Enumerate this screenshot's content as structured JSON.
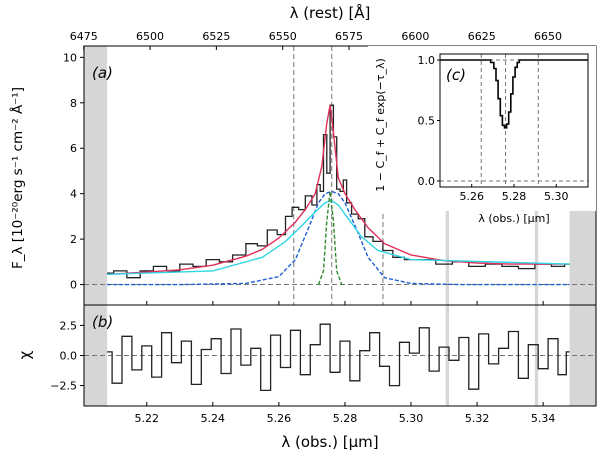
{
  "figure": {
    "top_axis_label": "λ (rest) [Å]",
    "bottom_axis_label": "λ (obs.) [μm]",
    "panel_a_ylabel": "F_λ [10⁻²⁰erg s⁻¹ cm⁻² Å⁻¹]",
    "panel_b_ylabel": "χ",
    "inset_ylabel": "1 − C_f + C_f exp(−τ_λ)",
    "inset_xlabel": "λ (obs.) [μm]",
    "panel_a_tag": "(a)",
    "panel_b_tag": "(b)",
    "panel_c_tag": "(c)"
  },
  "chart_data": [
    {
      "panel": "(a)",
      "type": "line",
      "title": "",
      "xlabel": "λ (obs.) [μm]",
      "ylabel": "F_λ [10⁻²⁰erg s⁻¹ cm⁻² Å⁻¹]",
      "xlim": [
        5.201,
        5.356
      ],
      "ylim": [
        -0.9,
        10.5
      ],
      "x_ticks": [
        5.22,
        5.24,
        5.26,
        5.28,
        5.3,
        5.32,
        5.34
      ],
      "x_tick_labels": [
        "5.22",
        "5.24",
        "5.26",
        "5.28",
        "5.30",
        "5.32",
        "5.34"
      ],
      "y_ticks": [
        0,
        2,
        4,
        6,
        8,
        10
      ],
      "top_axis": {
        "label": "λ (rest) [Å]",
        "ticks": [
          6475,
          6500,
          6525,
          6550,
          6575,
          6600,
          6625,
          6650
        ],
        "tick_labels": [
          "6475",
          "6500",
          "6525",
          "6550",
          "6575",
          "6600",
          "6625",
          "6650"
        ],
        "obs_per_rest": 0.00080323
      },
      "masked_regions": [
        [
          5.201,
          5.208
        ],
        [
          5.3105,
          5.3115
        ],
        [
          5.3375,
          5.3385
        ],
        [
          5.348,
          5.356
        ]
      ],
      "vertical_dashed_lines": [
        5.2645,
        5.276,
        5.2915
      ],
      "horizontal_dashed_line": 0,
      "series": [
        {
          "name": "data",
          "style": "steps",
          "color": "#222222",
          "x": [
            5.208,
            5.212,
            5.216,
            5.22,
            5.224,
            5.228,
            5.232,
            5.236,
            5.24,
            5.244,
            5.248,
            5.252,
            5.255,
            5.258,
            5.261,
            5.263,
            5.265,
            5.267,
            5.269,
            5.271,
            5.272,
            5.273,
            5.274,
            5.275,
            5.276,
            5.277,
            5.278,
            5.279,
            5.28,
            5.281,
            5.283,
            5.285,
            5.287,
            5.29,
            5.293,
            5.296,
            5.3,
            5.305,
            5.31,
            5.315,
            5.32,
            5.325,
            5.33,
            5.335,
            5.34,
            5.345,
            5.348
          ],
          "y": [
            0.5,
            0.6,
            0.3,
            0.6,
            0.8,
            0.6,
            0.9,
            0.8,
            1.1,
            1.0,
            1.3,
            1.8,
            1.7,
            2.4,
            2.2,
            3.0,
            3.4,
            3.3,
            3.9,
            3.5,
            4.4,
            4.1,
            6.6,
            4.9,
            7.9,
            6.5,
            4.2,
            4.1,
            4.6,
            3.6,
            3.1,
            2.9,
            2.1,
            1.9,
            1.5,
            1.2,
            1.1,
            1.1,
            0.9,
            1.0,
            0.8,
            0.9,
            0.8,
            0.7,
            0.9,
            0.8,
            0.9
          ]
        },
        {
          "name": "model total",
          "style": "line",
          "color": "#e0305a",
          "x": [
            5.208,
            5.22,
            5.23,
            5.24,
            5.25,
            5.255,
            5.26,
            5.265,
            5.268,
            5.271,
            5.273,
            5.2745,
            5.2755,
            5.2765,
            5.278,
            5.28,
            5.283,
            5.287,
            5.292,
            5.3,
            5.31,
            5.32,
            5.33,
            5.348
          ],
          "y": [
            0.45,
            0.55,
            0.65,
            0.85,
            1.25,
            1.55,
            2.05,
            2.75,
            3.3,
            4.0,
            5.2,
            7.1,
            7.9,
            6.7,
            4.7,
            4.0,
            3.3,
            2.5,
            1.8,
            1.3,
            1.05,
            0.95,
            0.9,
            0.9
          ]
        },
        {
          "name": "broad component",
          "style": "dashed",
          "color": "#1f5fd6",
          "x": [
            5.208,
            5.23,
            5.25,
            5.26,
            5.265,
            5.269,
            5.272,
            5.274,
            5.276,
            5.278,
            5.28,
            5.283,
            5.287,
            5.292,
            5.3,
            5.315,
            5.348
          ],
          "y": [
            0.0,
            0.0,
            0.05,
            0.35,
            1.1,
            2.5,
            3.6,
            4.0,
            4.1,
            4.0,
            3.6,
            2.6,
            1.2,
            0.3,
            0.05,
            0.0,
            0.0
          ]
        },
        {
          "name": "intermediate component",
          "style": "line",
          "color": "#2fd6e6",
          "x": [
            5.208,
            5.24,
            5.255,
            5.262,
            5.267,
            5.271,
            5.274,
            5.276,
            5.278,
            5.281,
            5.285,
            5.29,
            5.3,
            5.348
          ],
          "y": [
            0.45,
            0.6,
            1.2,
            1.9,
            2.6,
            3.2,
            3.6,
            3.7,
            3.5,
            2.9,
            2.1,
            1.5,
            1.1,
            0.9
          ]
        },
        {
          "name": "narrow component",
          "style": "dashed",
          "color": "#2e8b2e",
          "x": [
            5.272,
            5.2735,
            5.2745,
            5.2755,
            5.2765,
            5.2775,
            5.279
          ],
          "y": [
            0.0,
            0.6,
            2.8,
            4.1,
            2.8,
            0.6,
            0.0
          ]
        }
      ]
    },
    {
      "panel": "(b)",
      "type": "line",
      "xlabel": "λ (obs.) [μm]",
      "ylabel": "χ",
      "xlim": [
        5.201,
        5.356
      ],
      "ylim": [
        -4.2,
        4.2
      ],
      "y_ticks": [
        -2.5,
        0.0,
        2.5
      ],
      "y_tick_labels": [
        "−2.5",
        "0.0",
        "2.5"
      ],
      "horizontal_dashed_line": 0,
      "series": [
        {
          "name": "residuals",
          "style": "steps",
          "color": "#222222",
          "x": [
            5.208,
            5.211,
            5.214,
            5.217,
            5.22,
            5.223,
            5.226,
            5.229,
            5.232,
            5.235,
            5.238,
            5.241,
            5.244,
            5.247,
            5.25,
            5.253,
            5.256,
            5.259,
            5.262,
            5.265,
            5.268,
            5.271,
            5.274,
            5.277,
            5.28,
            5.283,
            5.286,
            5.289,
            5.292,
            5.295,
            5.298,
            5.301,
            5.304,
            5.307,
            5.31,
            5.313,
            5.316,
            5.319,
            5.322,
            5.325,
            5.328,
            5.331,
            5.334,
            5.337,
            5.34,
            5.343,
            5.346,
            5.348
          ],
          "y": [
            0.3,
            -2.3,
            1.6,
            -1.2,
            0.8,
            -1.8,
            1.9,
            -0.6,
            1.2,
            -2.4,
            0.5,
            1.4,
            -1.5,
            2.2,
            -0.8,
            0.6,
            -2.9,
            1.7,
            -1.0,
            2.1,
            -1.6,
            0.9,
            2.6,
            -1.4,
            1.2,
            -2.1,
            0.4,
            1.9,
            -0.9,
            -2.5,
            1.1,
            0.2,
            2.3,
            -1.3,
            0.7,
            -0.4,
            1.5,
            -2.8,
            1.8,
            -0.7,
            0.6,
            2.0,
            -1.9,
            0.9,
            -1.1,
            1.4,
            -1.6,
            0.3
          ]
        }
      ]
    },
    {
      "panel": "(c)",
      "type": "line",
      "xlabel": "λ (obs.) [μm]",
      "ylabel": "1 − C_f + C_f exp(−τ_λ)",
      "xlim": [
        5.245,
        5.315
      ],
      "ylim": [
        -0.05,
        1.05
      ],
      "x_ticks": [
        5.26,
        5.28,
        5.3
      ],
      "x_tick_labels": [
        "5.26",
        "5.28",
        "5.30"
      ],
      "y_ticks": [
        0.0,
        0.5,
        1.0
      ],
      "y_tick_labels": [
        "0.0",
        "0.5",
        "1.0"
      ],
      "vertical_dashed_lines": [
        5.2645,
        5.276,
        5.2915
      ],
      "horizontal_dashed_lines": [
        0,
        1
      ],
      "series": [
        {
          "name": "absorption profile",
          "style": "steps",
          "color": "#000000",
          "x": [
            5.245,
            5.268,
            5.27,
            5.271,
            5.272,
            5.273,
            5.274,
            5.275,
            5.276,
            5.277,
            5.278,
            5.279,
            5.28,
            5.281,
            5.282,
            5.283,
            5.285,
            5.315
          ],
          "y": [
            1.0,
            1.0,
            0.98,
            0.93,
            0.83,
            0.68,
            0.54,
            0.46,
            0.44,
            0.47,
            0.57,
            0.72,
            0.86,
            0.94,
            0.98,
            1.0,
            1.0,
            1.0
          ]
        }
      ]
    }
  ]
}
